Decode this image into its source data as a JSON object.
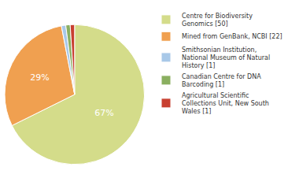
{
  "chart_data": {
    "type": "pie",
    "categories": [
      "Centre for Biodiversity\nGenomics [50]",
      "Mined from GenBank, NCBI [22]",
      "Smithsonian Institution,\nNational Museum of Natural\nHistory [1]",
      "Canadian Centre for DNA\nBarcoding [1]",
      "Agricultural Scientific\nCollections Unit, New South\nWales [1]"
    ],
    "values": [
      67,
      29,
      1,
      1,
      1
    ],
    "value_labels": [
      "67%",
      "29%",
      null,
      null,
      null
    ],
    "data_labels": true,
    "colors": [
      "#d4dc8a",
      "#f0a050",
      "#a8c8e8",
      "#8aaf60",
      "#c84030"
    ],
    "legend": "right"
  }
}
